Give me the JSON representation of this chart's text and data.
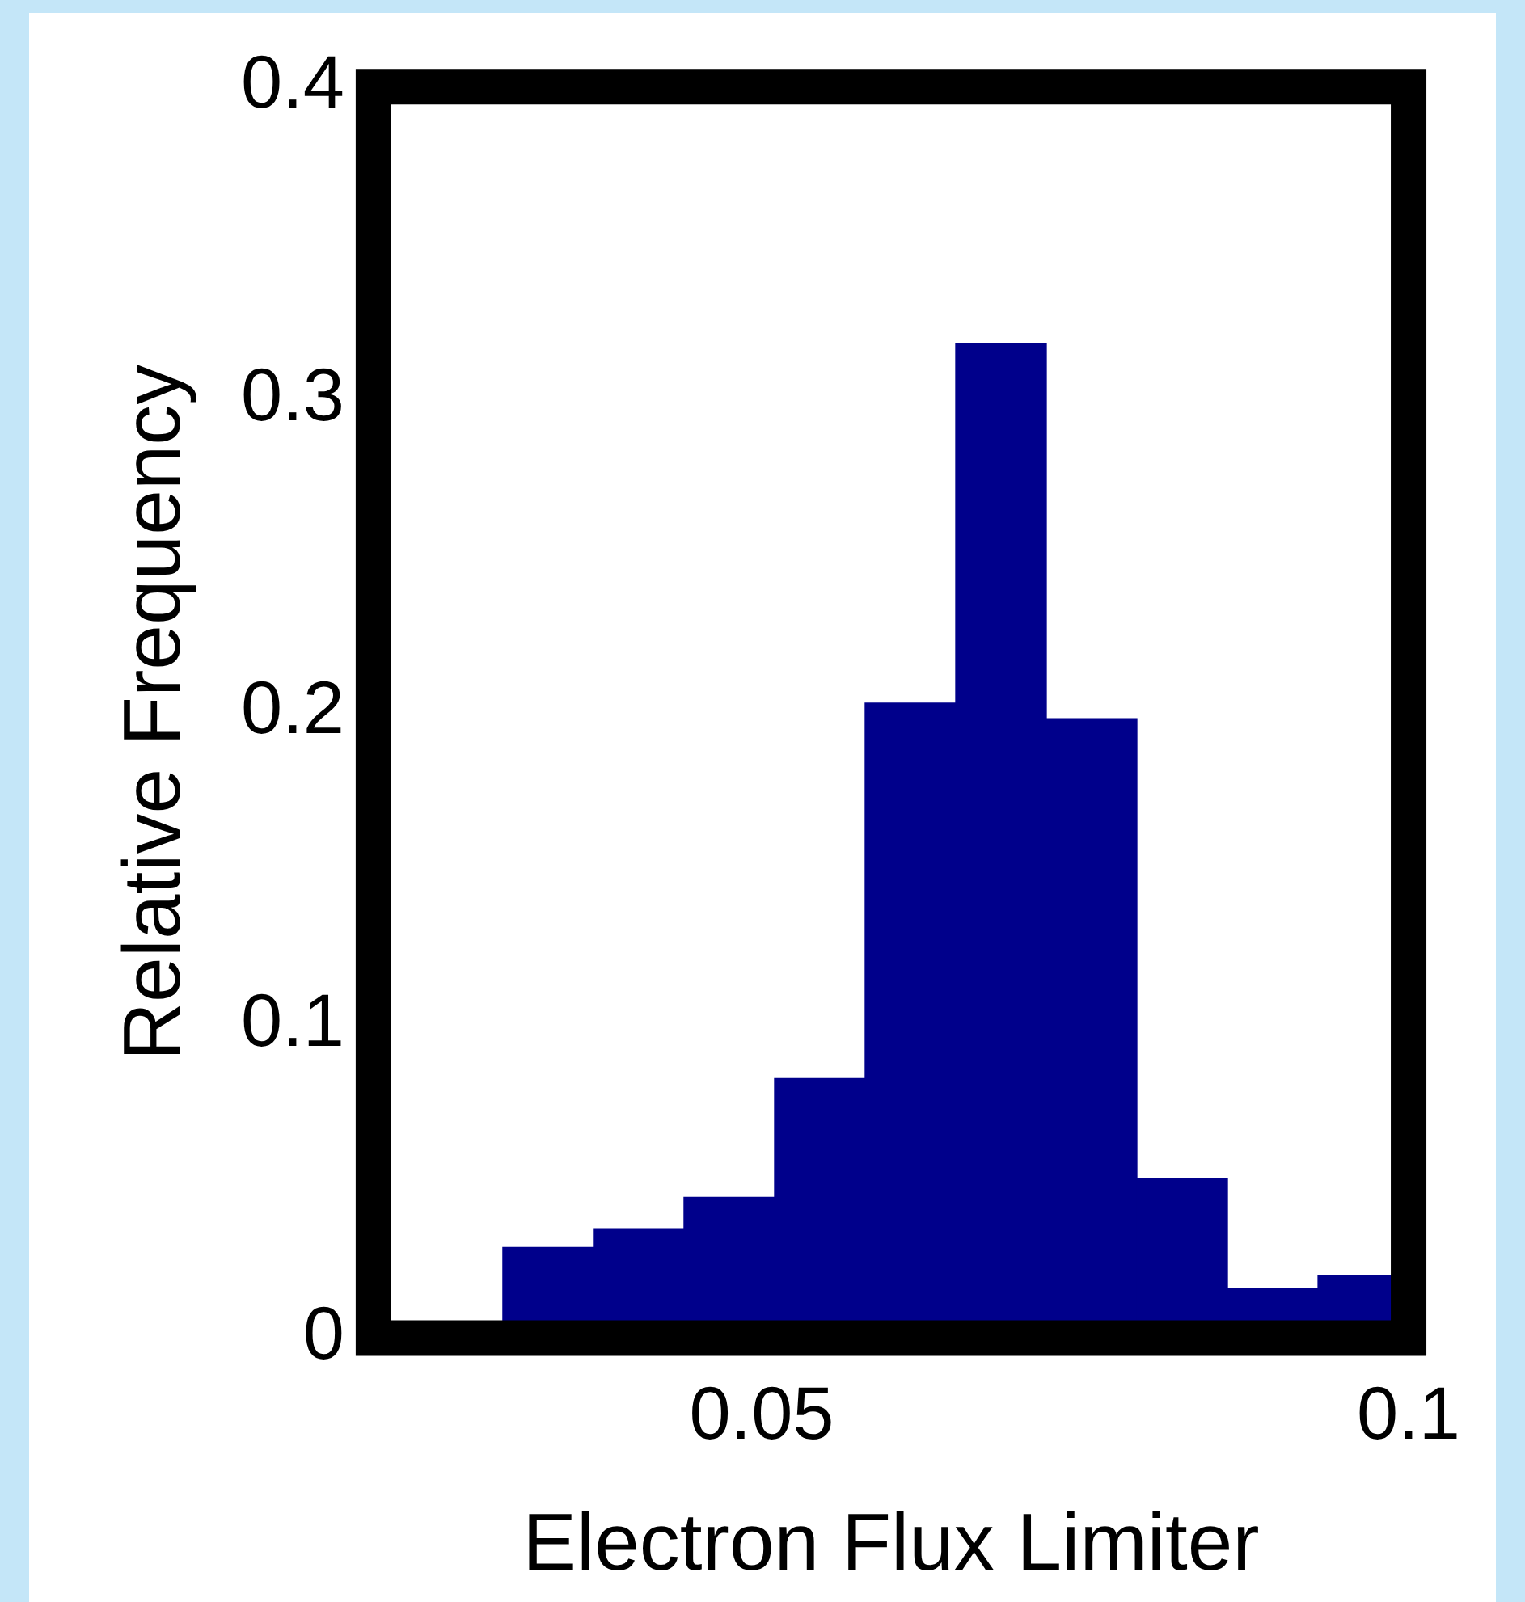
{
  "chart_data": {
    "type": "histogram",
    "xlabel": "Electron Flux Limiter",
    "ylabel": "Relative Frequency",
    "bins": [
      0.03,
      0.037,
      0.044,
      0.051,
      0.058,
      0.065,
      0.072,
      0.079,
      0.086,
      0.093,
      0.1
    ],
    "values": [
      0.029,
      0.035,
      0.045,
      0.083,
      0.203,
      0.318,
      0.198,
      0.051,
      0.016,
      0.02
    ],
    "color": "#00008b",
    "xlim": [
      0.02,
      0.1
    ],
    "xticks": [
      0.05,
      0.1
    ],
    "ylim": [
      0,
      0.4
    ],
    "yticks": [
      0,
      0.1,
      0.2,
      0.3,
      0.4
    ],
    "grid": false,
    "legend": false
  }
}
